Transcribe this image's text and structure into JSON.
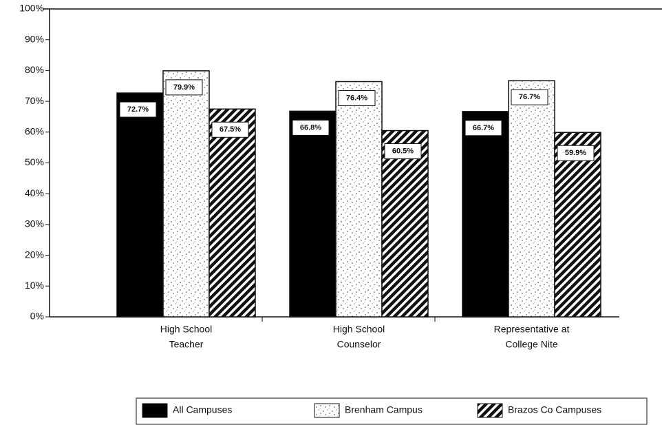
{
  "chart_data": {
    "type": "bar",
    "categories": [
      [
        "High School",
        "Teacher"
      ],
      [
        "High School",
        "Counselor"
      ],
      [
        "Representative at",
        "College Nite"
      ]
    ],
    "series": [
      {
        "name": "All Campuses",
        "color": "#000000",
        "values": [
          72.7,
          66.8,
          66.7
        ],
        "value_labels": [
          "72.7%",
          "66.8%",
          "66.7%"
        ]
      },
      {
        "name": "Brenham Campus",
        "color": "#ffffff",
        "values": [
          79.9,
          76.4,
          76.7
        ],
        "value_labels": [
          "79.9%",
          "76.4%",
          "76.7%"
        ]
      },
      {
        "name": "Brazos Co  Campuses",
        "color": "#000000",
        "values": [
          67.5,
          60.5,
          59.9
        ],
        "value_labels": [
          "67.5%",
          "60.5%",
          "59.9%"
        ]
      }
    ],
    "ylim": [
      0,
      100
    ],
    "yticks": [
      {
        "value": 0,
        "label": "0%"
      },
      {
        "value": 10,
        "label": "10%"
      },
      {
        "value": 20,
        "label": "20%"
      },
      {
        "value": 30,
        "label": "30%"
      },
      {
        "value": 40,
        "label": "40%"
      },
      {
        "value": 50,
        "label": "50%"
      },
      {
        "value": 60,
        "label": "60%"
      },
      {
        "value": 70,
        "label": "70%"
      },
      {
        "value": 80,
        "label": "80%"
      },
      {
        "value": 90,
        "label": "90%"
      },
      {
        "value": 100,
        "label": "100%"
      }
    ],
    "legend": "bottom"
  }
}
